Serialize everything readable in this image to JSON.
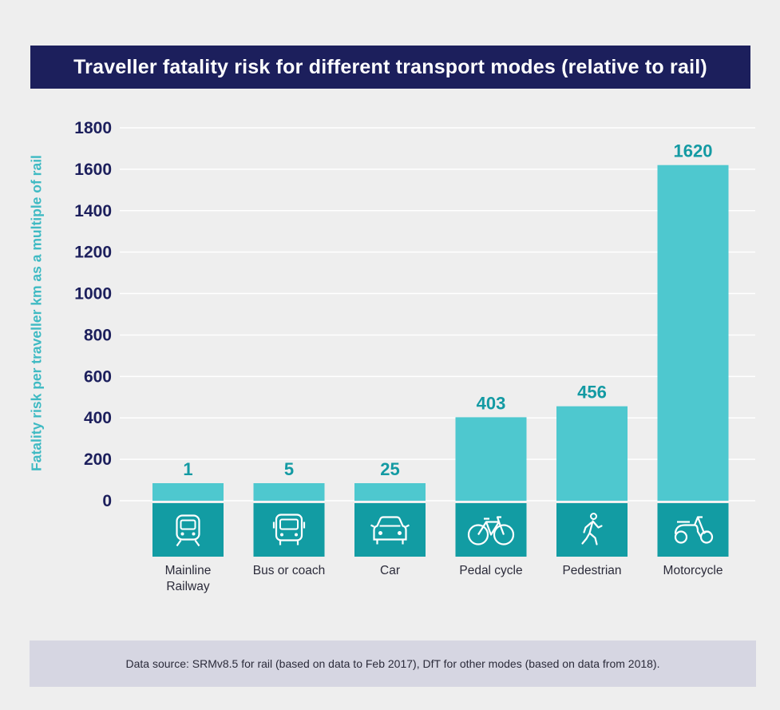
{
  "chart_data": {
    "type": "bar",
    "title": "Traveller fatality risk for different transport modes (relative to rail)",
    "ylabel": "Fatality risk per traveller km as a multiple of rail",
    "xlabel": "",
    "categories": [
      "Mainline Railway",
      "Bus or coach",
      "Car",
      "Pedal cycle",
      "Pedestrian",
      "Motorcycle"
    ],
    "values": [
      1,
      5,
      25,
      403,
      456,
      1620
    ],
    "value_labels": [
      "1",
      "5",
      "25",
      "403",
      "456",
      "1620"
    ],
    "category_icons": [
      "train-icon",
      "bus-icon",
      "car-icon",
      "bicycle-icon",
      "pedestrian-icon",
      "motorcycle-icon"
    ],
    "ylim": [
      0,
      1800
    ],
    "yticks": [
      0,
      200,
      400,
      600,
      800,
      1000,
      1200,
      1400,
      1600,
      1800
    ],
    "grid": true,
    "colors": {
      "bar": "#4ec8cf",
      "icon_tile": "#129ca3",
      "value_label": "#139aa3",
      "axis_text": "#1c1f5c",
      "title_bg": "#1c1f5c",
      "ylabel": "#3fbac3"
    }
  },
  "footer": {
    "text": "Data source: SRMv8.5 for rail (based on data to Feb 2017), DfT for other modes (based on data from 2018)."
  }
}
